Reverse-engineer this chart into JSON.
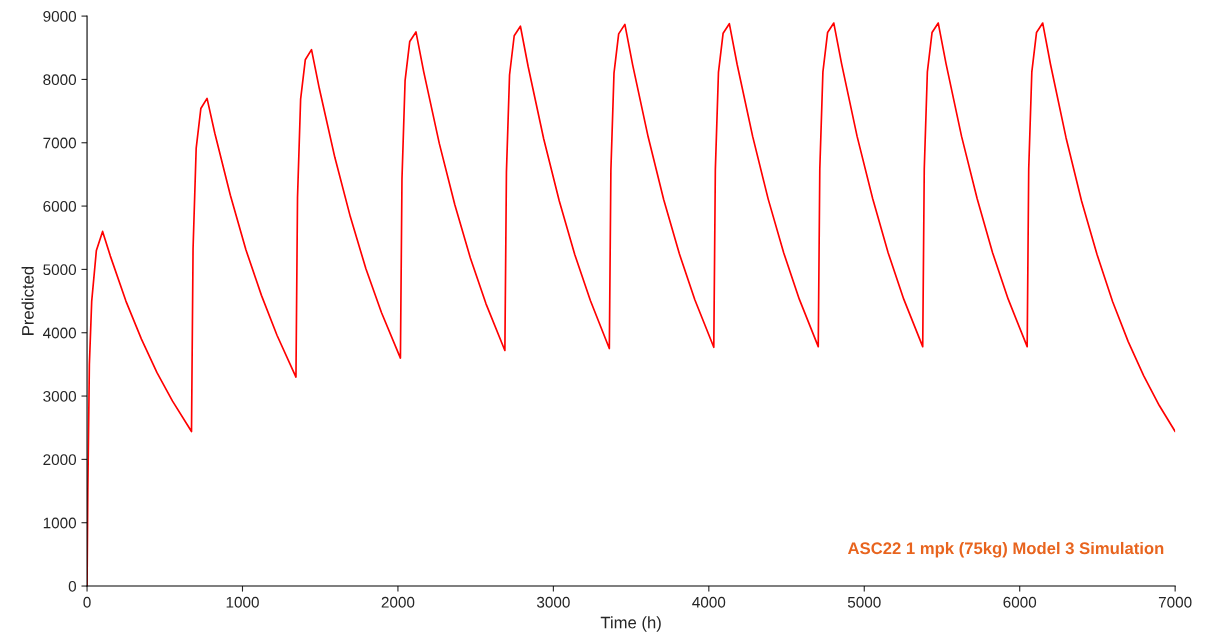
{
  "chart_data": {
    "type": "line",
    "xlabel": "Time (h)",
    "ylabel": "Predicted",
    "x": [
      0,
      5,
      15,
      30,
      60,
      100,
      150,
      250,
      350,
      450,
      550,
      672,
      682,
      702,
      732,
      772,
      822,
      922,
      1022,
      1122,
      1222,
      1344,
      1354,
      1374,
      1404,
      1444,
      1494,
      1594,
      1694,
      1794,
      1894,
      2016,
      2026,
      2046,
      2076,
      2116,
      2166,
      2266,
      2366,
      2466,
      2566,
      2688,
      2698,
      2718,
      2748,
      2788,
      2838,
      2938,
      3038,
      3138,
      3238,
      3360,
      3370,
      3390,
      3420,
      3460,
      3510,
      3610,
      3710,
      3810,
      3910,
      4032,
      4042,
      4062,
      4092,
      4132,
      4182,
      4282,
      4382,
      4482,
      4582,
      4704,
      4714,
      4734,
      4764,
      4804,
      4854,
      4954,
      5054,
      5154,
      5254,
      5376,
      5386,
      5406,
      5436,
      5476,
      5526,
      5626,
      5726,
      5826,
      5926,
      6048,
      6058,
      6078,
      6108,
      6148,
      6198,
      6298,
      6398,
      6498,
      6598,
      6698,
      6798,
      6898,
      7000
    ],
    "series": [
      {
        "color": "#ff0000",
        "values": [
          0,
          1500,
          3500,
          4500,
          5300,
          5600,
          5210,
          4500,
          3900,
          3370,
          2920,
          2440,
          5330,
          6910,
          7540,
          7700,
          7150,
          6170,
          5310,
          4590,
          3960,
          3300,
          6140,
          7690,
          8310,
          8470,
          7860,
          6770,
          5830,
          5010,
          4320,
          3600,
          6430,
          7980,
          8600,
          8750,
          8120,
          6990,
          6020,
          5180,
          4460,
          3720,
          6540,
          8070,
          8690,
          8840,
          8200,
          7060,
          6080,
          5230,
          4510,
          3750,
          6570,
          8100,
          8720,
          8870,
          8230,
          7090,
          6100,
          5250,
          4520,
          3770,
          6580,
          8110,
          8730,
          8880,
          8240,
          7100,
          6110,
          5260,
          4530,
          3780,
          6590,
          8120,
          8740,
          8890,
          8250,
          7100,
          6120,
          5260,
          4530,
          3780,
          6590,
          8120,
          8740,
          8890,
          8250,
          7100,
          6120,
          5260,
          4530,
          3780,
          6590,
          8120,
          8740,
          8890,
          8240,
          7080,
          6080,
          5230,
          4490,
          3860,
          3320,
          2850,
          2440
        ]
      }
    ],
    "xlim": [
      0,
      7000
    ],
    "xticks": [
      0,
      1000,
      2000,
      3000,
      4000,
      5000,
      6000,
      7000
    ],
    "ylim": [
      0,
      9000
    ],
    "yticks": [
      0,
      1000,
      2000,
      3000,
      4000,
      5000,
      6000,
      7000,
      8000,
      9000
    ],
    "grid": false,
    "marker": "none",
    "line_style": "solid",
    "annotations": [
      "ASC22 1 mpk (75kg) Model 3 Simulation"
    ]
  }
}
